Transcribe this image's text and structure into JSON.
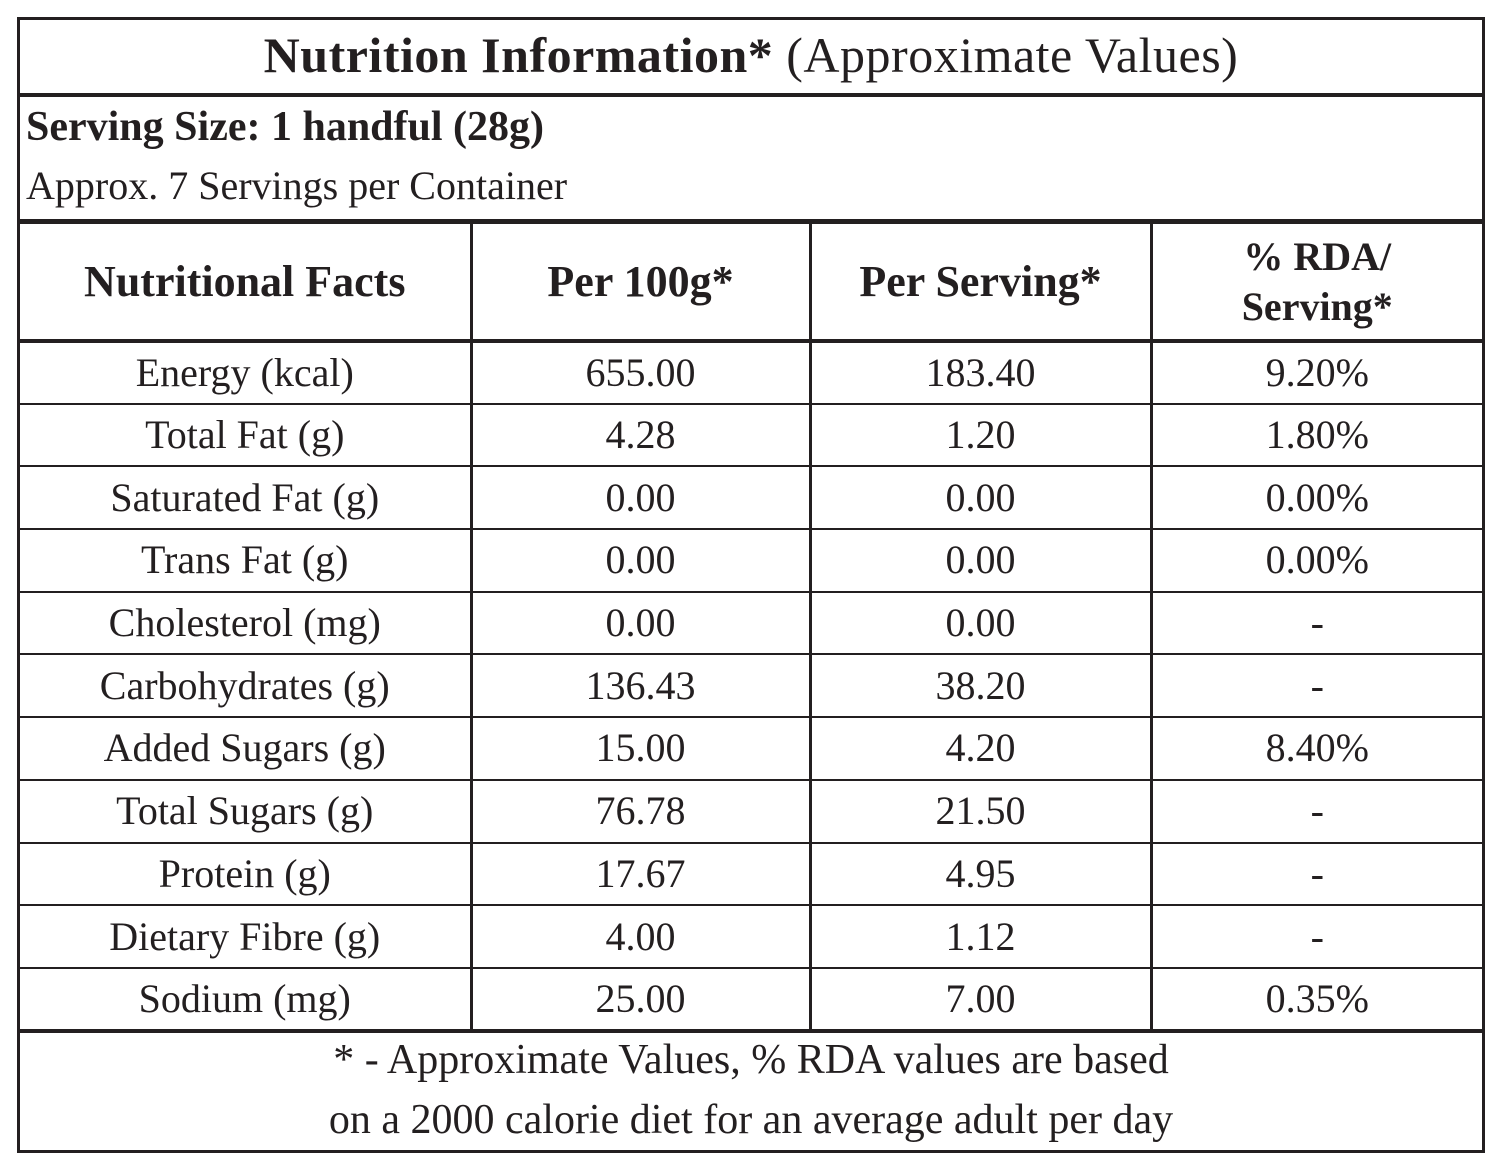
{
  "title": {
    "bold_text": "Nutrition Information*",
    "regular_text": " (Approximate Values)"
  },
  "serving": {
    "size": "Serving Size: 1 handful (28g)",
    "per_container": "Approx. 7 Servings per Container"
  },
  "table": {
    "headers": [
      "Nutritional Facts",
      "Per 100g*",
      "Per Serving*",
      "% RDA/",
      "Serving*"
    ],
    "rows": [
      [
        "Energy (kcal)",
        "655.00",
        "183.40",
        "9.20%"
      ],
      [
        "Total Fat (g)",
        "4.28",
        "1.20",
        "1.80%"
      ],
      [
        "Saturated Fat (g)",
        "0.00",
        "0.00",
        "0.00%"
      ],
      [
        "Trans Fat (g)",
        "0.00",
        "0.00",
        "0.00%"
      ],
      [
        "Cholesterol (mg)",
        "0.00",
        "0.00",
        "-"
      ],
      [
        "Carbohydrates (g)",
        "136.43",
        "38.20",
        "-"
      ],
      [
        "Added Sugars (g)",
        "15.00",
        "4.20",
        "8.40%"
      ],
      [
        "Total Sugars (g)",
        "76.78",
        "21.50",
        "-"
      ],
      [
        "Protein (g)",
        "17.67",
        "4.95",
        "-"
      ],
      [
        "Dietary Fibre (g)",
        "4.00",
        "1.12",
        "-"
      ],
      [
        "Sodium (mg)",
        "25.00",
        "7.00",
        "0.35%"
      ]
    ]
  },
  "footnote": {
    "line1": "* - Approximate Values, % RDA values are based",
    "line2": "on a 2000 calorie diet for an average adult per day"
  }
}
